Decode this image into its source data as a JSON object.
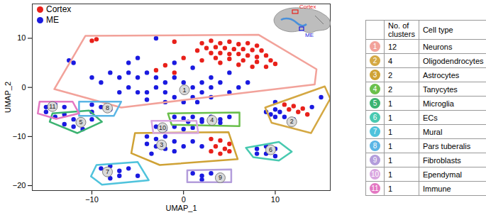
{
  "chart_data": {
    "type": "scatter",
    "x_label": "UMAP_1",
    "y_label": "UMAP_2",
    "xlim": [
      -16.5,
      16
    ],
    "ylim": [
      -21,
      17
    ],
    "xticks": [
      -10,
      0,
      10
    ],
    "yticks": [
      -20,
      -10,
      0,
      10
    ],
    "legend": "top-left",
    "series": [
      {
        "name": "Cortex",
        "color": "#e8201a",
        "x": [
          2,
          3,
          4,
          5,
          6,
          7,
          8,
          2.5,
          3.5,
          4.5,
          5.5,
          6.5,
          7.5,
          8.5,
          3,
          4,
          5,
          6,
          7,
          8,
          9,
          3.5,
          5,
          6.5,
          8,
          9.5,
          4,
          6,
          7.5,
          9,
          10,
          2,
          1.5,
          -2,
          -3,
          -1,
          -10,
          -9.5,
          -1,
          0,
          3,
          4,
          5,
          3.5,
          4.5,
          3,
          4,
          5,
          11,
          12,
          13,
          12.5,
          13.5,
          11.5
        ],
        "y": [
          9,
          9.5,
          9,
          9.3,
          8.8,
          9,
          8.5,
          8,
          8.2,
          8,
          7.8,
          7.8,
          7.6,
          7.5,
          7,
          7,
          6.8,
          6.8,
          6.5,
          6.2,
          6.5,
          6,
          5.8,
          5.5,
          5.2,
          5.5,
          5,
          4.6,
          4.2,
          4.2,
          4.8,
          5.5,
          7.5,
          4.5,
          3.5,
          3,
          9.5,
          9.8,
          9.3,
          6,
          -10.5,
          -10.8,
          -11.5,
          -12,
          -12.5,
          -13,
          -13.5,
          -13,
          -3.5,
          -3.8,
          -4.3,
          -5,
          -5.5,
          -4.5
        ]
      },
      {
        "name": "ME",
        "color": "#1a1ae0",
        "x": [
          -8,
          -7,
          -6,
          -5,
          -4,
          -3,
          -2,
          -1,
          0,
          1,
          2,
          3,
          4,
          -6,
          -5,
          -4,
          -3,
          -2,
          -1,
          0,
          1,
          2,
          3,
          -7,
          -4,
          -2,
          0,
          1.5,
          3,
          5,
          6,
          7,
          5,
          -9,
          -10,
          -12,
          -12.5,
          -3,
          -6,
          -5,
          -1,
          1,
          9,
          10,
          9.5,
          10,
          11,
          10.5,
          12,
          14,
          15,
          10,
          -4,
          -3,
          -2,
          -1,
          -4,
          -3,
          -2,
          -1,
          0,
          -3.5,
          1,
          2,
          -1,
          0,
          1,
          2,
          3,
          4,
          5,
          0.5,
          2,
          4,
          -3,
          -2,
          -1,
          0,
          1,
          -14,
          -13,
          -12,
          -11,
          -10,
          -13,
          -12,
          -11,
          -15,
          -14,
          -13,
          -15,
          -10,
          -9,
          -8,
          -10,
          -9,
          -8,
          -7,
          -6,
          -5,
          -8,
          -7,
          1,
          2,
          3,
          4,
          2,
          8,
          9,
          10,
          9,
          10,
          8
        ],
        "y": [
          3,
          2,
          3,
          2,
          3,
          2,
          1,
          2,
          1,
          0,
          1,
          2,
          1,
          0,
          -1,
          -1,
          0,
          -1,
          -2,
          -1,
          -2,
          -1,
          0,
          -1,
          -2.5,
          -3,
          -3,
          -3,
          -2,
          -1,
          0,
          1,
          3,
          1,
          2,
          5,
          5.5,
          10,
          5,
          6,
          5,
          4,
          -5,
          -4.5,
          -5.5,
          -6,
          -6,
          -5,
          -6.5,
          -4,
          -2,
          -3,
          -10,
          -10.5,
          -10,
          -11,
          -11.5,
          -12,
          -12.5,
          -13,
          -12,
          -13.5,
          -11,
          -12,
          -6,
          -6.3,
          -6,
          -6.5,
          -6,
          -6.5,
          -6,
          -7,
          -7,
          -7.2,
          -8,
          -8.5,
          -8,
          -8.5,
          -8.2,
          -6,
          -5.5,
          -6.5,
          -7,
          -6.5,
          -7.5,
          -8,
          -8.5,
          -4,
          -3.5,
          -4,
          -5,
          -3.5,
          -4,
          -4.5,
          -5,
          -16.5,
          -16,
          -17,
          -16.5,
          -18,
          -18.5,
          -18,
          -17.5,
          -18,
          -17.5,
          -18,
          -18.8,
          -12.5,
          -12,
          -12.5,
          -13.5,
          -14,
          -13.5
        ]
      }
    ],
    "clusters": [
      {
        "id": 1,
        "color": "#f2a29a",
        "label_at": [
          0.1,
          -0.5
        ],
        "outline": [
          [
            -10.7,
            10.5
          ],
          [
            8.2,
            10.7
          ],
          [
            14.5,
            3.7
          ],
          [
            14.3,
            0.6
          ],
          [
            -6.8,
            -4.1
          ],
          [
            -14.1,
            -0.35
          ]
        ]
      },
      {
        "id": 2,
        "color": "#d4a843",
        "label_at": [
          11.8,
          -7.0
        ],
        "outline": [
          [
            8.9,
            -4.1
          ],
          [
            15.4,
            0.2
          ],
          [
            16.0,
            -2.3
          ],
          [
            13.9,
            -9.3
          ],
          [
            9.6,
            -7.2
          ]
        ]
      },
      {
        "id": 3,
        "color": "#cfa235",
        "label_at": [
          -2.4,
          -11.7
        ],
        "outline": [
          [
            -5.3,
            -9.3
          ],
          [
            4.9,
            -9.1
          ],
          [
            5.9,
            -14.6
          ],
          [
            -2.6,
            -15.8
          ],
          [
            -5.7,
            -13.4
          ]
        ]
      },
      {
        "id": 4,
        "color": "#6abf4b",
        "label_at": [
          3.1,
          -6.7
        ],
        "outline": [
          [
            -1.7,
            -5.3
          ],
          [
            6.1,
            -5.1
          ],
          [
            6.1,
            -7.9
          ],
          [
            -1.3,
            -7.6
          ]
        ]
      },
      {
        "id": 5,
        "color": "#3cb371",
        "label_at": [
          -11.2,
          -7.1
        ],
        "outline": [
          [
            -14.3,
            -5.3
          ],
          [
            -10.3,
            -4.7
          ],
          [
            -8.9,
            -7.0
          ],
          [
            -11.6,
            -9.3
          ],
          [
            -14.6,
            -7.0
          ]
        ]
      },
      {
        "id": 6,
        "color": "#48c9b0",
        "label_at": [
          9.5,
          -12.7
        ],
        "outline": [
          [
            6.8,
            -12.3
          ],
          [
            10.4,
            -11.1
          ],
          [
            11.8,
            -13.1
          ],
          [
            10.4,
            -14.9
          ],
          [
            7.6,
            -14.2
          ]
        ]
      },
      {
        "id": 7,
        "color": "#4fc3dc",
        "label_at": [
          -8.3,
          -17.2
        ],
        "outline": [
          [
            -9.5,
            -15.8
          ],
          [
            -5.0,
            -15.2
          ],
          [
            -3.8,
            -18.9
          ],
          [
            -8.9,
            -19.8
          ],
          [
            -10.1,
            -18.1
          ]
        ]
      },
      {
        "id": 8,
        "color": "#5bb5e5",
        "label_at": [
          -8.3,
          -4.2
        ],
        "outline": [
          [
            -11.4,
            -2.9
          ],
          [
            -6.8,
            -2.9
          ],
          [
            -7.6,
            -5.8
          ],
          [
            -11.4,
            -5.8
          ]
        ]
      },
      {
        "id": 9,
        "color": "#b39ddb",
        "label_at": [
          4.0,
          -18.4
        ],
        "outline": [
          [
            0.4,
            -16.9
          ],
          [
            5.2,
            -16.7
          ],
          [
            5.2,
            -19.3
          ],
          [
            0.4,
            -19.3
          ]
        ]
      },
      {
        "id": 10,
        "color": "#d9a6e0",
        "label_at": [
          -2.3,
          -8.2
        ],
        "outline": [
          [
            -3.5,
            -6.8
          ],
          [
            1.4,
            -6.8
          ],
          [
            1.6,
            -9.3
          ],
          [
            -3.3,
            -9.3
          ]
        ]
      },
      {
        "id": 11,
        "color": "#e377c2",
        "label_at": [
          -14.3,
          -3.9
        ],
        "outline": [
          [
            -15.7,
            -2.9
          ],
          [
            -12.1,
            -2.9
          ],
          [
            -11.4,
            -5.3
          ],
          [
            -13.9,
            -6.4
          ],
          [
            -15.9,
            -5.3
          ]
        ]
      }
    ],
    "inset": {
      "labels": [
        "Cortex",
        "ME"
      ]
    },
    "table": {
      "columns": [
        "No. of clusters",
        "Cell type"
      ],
      "rows": [
        {
          "id": 1,
          "count": 12,
          "cell_type": "Neurons"
        },
        {
          "id": 2,
          "count": 4,
          "cell_type": "Oligodendrocytes"
        },
        {
          "id": 3,
          "count": 2,
          "cell_type": "Astrocytes"
        },
        {
          "id": 4,
          "count": 2,
          "cell_type": "Tanycytes"
        },
        {
          "id": 5,
          "count": 1,
          "cell_type": "Microglia"
        },
        {
          "id": 6,
          "count": 1,
          "cell_type": "ECs"
        },
        {
          "id": 7,
          "count": 1,
          "cell_type": "Mural"
        },
        {
          "id": 8,
          "count": 1,
          "cell_type": "Pars tuberalis"
        },
        {
          "id": 9,
          "count": 1,
          "cell_type": "Fibroblasts"
        },
        {
          "id": 10,
          "count": 1,
          "cell_type": "Ependymal"
        },
        {
          "id": 11,
          "count": 1,
          "cell_type": "Immune"
        }
      ]
    }
  }
}
